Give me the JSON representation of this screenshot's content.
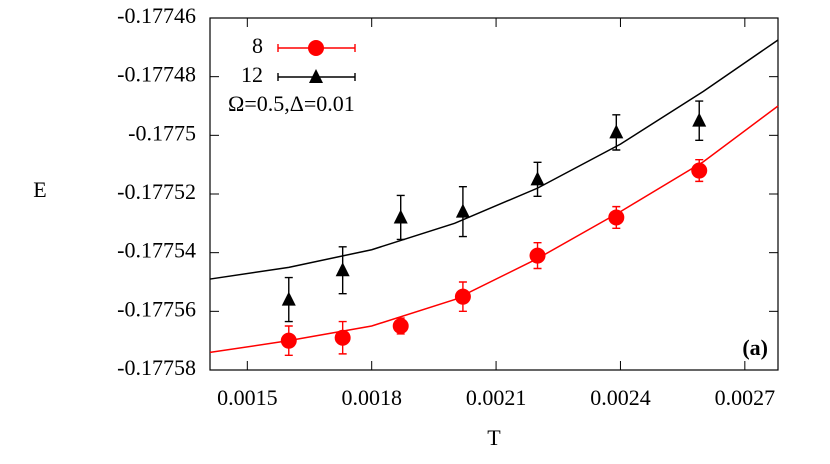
{
  "chart_data": {
    "type": "scatter",
    "xlabel": "T",
    "ylabel": "E",
    "xlim": [
      0.00141,
      0.00278
    ],
    "ylim": [
      -0.17758,
      -0.17746
    ],
    "xticks": [
      0.0015,
      0.0018,
      0.0021,
      0.0024,
      0.0027
    ],
    "yticks": [
      -0.17758,
      -0.17756,
      -0.17754,
      -0.17752,
      -0.1775,
      -0.17748,
      -0.17746
    ],
    "series": [
      {
        "name": "8",
        "color": "#ff0000",
        "marker": "circle",
        "x": [
          0.0016,
          0.00173,
          0.00187,
          0.00202,
          0.0022,
          0.00239,
          0.00259
        ],
        "values": [
          -0.17757,
          -0.177569,
          -0.177565,
          -0.177555,
          -0.177541,
          -0.177528,
          -0.177512
        ],
        "errors": [
          5e-06,
          5.5e-06,
          2.7e-06,
          5e-06,
          4.4e-06,
          3.7e-06,
          3.7e-06
        ]
      },
      {
        "name": "12",
        "color": "#000000",
        "marker": "triangle",
        "x": [
          0.0016,
          0.00173,
          0.00187,
          0.00202,
          0.0022,
          0.00239,
          0.00259
        ],
        "values": [
          -0.177556,
          -0.177546,
          -0.177528,
          -0.177526,
          -0.177515,
          -0.177499,
          -0.177495
        ],
        "errors": [
          7.5e-06,
          8e-06,
          7.5e-06,
          8.5e-06,
          5.8e-06,
          6e-06,
          6.7e-06
        ]
      }
    ],
    "fits": [
      {
        "color": "#ff0000",
        "x": [
          0.00141,
          0.0016,
          0.0018,
          0.002,
          0.0022,
          0.0024,
          0.0026,
          0.00278
        ],
        "values": [
          -0.177574,
          -0.17757,
          -0.177565,
          -0.177556,
          -0.177542,
          -0.177526,
          -0.177509,
          -0.17749
        ]
      },
      {
        "color": "#000000",
        "x": [
          0.00141,
          0.0016,
          0.0018,
          0.002,
          0.0022,
          0.0024,
          0.0026,
          0.00278
        ],
        "values": [
          -0.177549,
          -0.177545,
          -0.177539,
          -0.17753,
          -0.177518,
          -0.177503,
          -0.177485,
          -0.1774675
        ]
      }
    ],
    "annotations": [
      "Ω=0.5,Δ=0.01",
      "(a)"
    ]
  }
}
